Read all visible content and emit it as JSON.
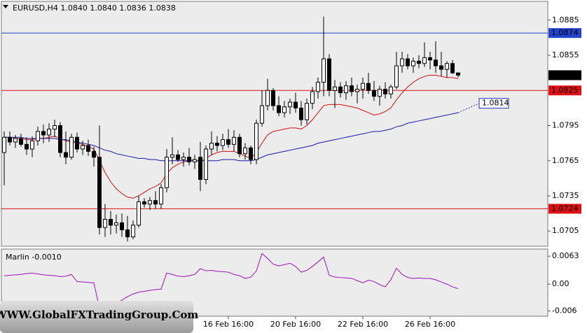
{
  "chart_data": [
    {
      "type": "candlestick",
      "title": "EURUSD,H4  1.0840 1.0840 1.0836 1.0838",
      "categories": [
        null,
        null,
        null,
        null,
        null,
        null,
        null,
        null,
        null,
        null,
        null,
        null,
        null,
        null,
        null,
        null,
        null,
        null,
        null,
        null,
        null,
        null,
        null,
        null,
        null,
        null,
        null,
        null,
        null,
        null,
        null,
        null,
        null,
        null,
        null,
        null,
        null,
        null,
        null,
        null,
        "16 Feb 16:00",
        null,
        null,
        null,
        null,
        null,
        null,
        null,
        null,
        null,
        null,
        null,
        "20 Feb 16:00",
        null,
        null,
        null,
        null,
        null,
        null,
        null,
        null,
        null,
        null,
        null,
        "22 Feb 16:00",
        null,
        null,
        null,
        null,
        null,
        null,
        null,
        null,
        null,
        null,
        null,
        "26 Feb 16:00",
        null,
        null,
        null,
        null,
        null
      ],
      "open": [
        1.0772,
        1.0785,
        1.0781,
        1.0784,
        1.0779,
        1.0775,
        1.0782,
        1.079,
        1.0787,
        1.0792,
        1.0795,
        1.0772,
        1.0768,
        1.0785,
        1.0775,
        1.0778,
        1.0773,
        1.0768,
        1.0708,
        1.0715,
        1.071,
        1.0712,
        1.0706,
        1.07,
        1.071,
        1.073,
        1.0728,
        1.0731,
        1.0728,
        1.0742,
        1.0768,
        1.077,
        1.0766,
        1.0768,
        1.0764,
        1.0768,
        1.0749,
        1.0775,
        1.078,
        1.0778,
        1.0783,
        1.0779,
        1.0785,
        1.0771,
        1.0776,
        1.0766,
        1.0797,
        1.0812,
        1.0825,
        1.0812,
        1.0806,
        1.0811,
        1.0815,
        1.081,
        1.08,
        1.0814,
        1.0824,
        1.0832,
        1.0852,
        1.0825,
        1.0828,
        1.0823,
        1.0829,
        1.0824,
        1.0826,
        1.0831,
        1.0825,
        1.082,
        1.0826,
        1.0822,
        1.0828,
        1.0846,
        1.0852,
        1.0846,
        1.085,
        1.0848,
        1.0853,
        1.0851,
        1.0846,
        1.0843,
        1.0848,
        1.084
      ],
      "high": [
        1.079,
        1.079,
        1.0787,
        1.0788,
        1.0785,
        1.0786,
        1.0794,
        1.0796,
        1.0797,
        1.08,
        1.0798,
        1.079,
        1.0788,
        1.0789,
        1.0782,
        1.0783,
        1.0777,
        1.0795,
        1.0728,
        1.0722,
        1.0719,
        1.072,
        1.0718,
        1.0714,
        1.0735,
        1.0733,
        1.0734,
        1.0739,
        1.0745,
        1.0775,
        1.0785,
        1.0774,
        1.0772,
        1.0776,
        1.077,
        1.0781,
        1.0778,
        1.079,
        1.0786,
        1.0788,
        1.0792,
        1.0791,
        1.0788,
        1.078,
        1.0778,
        1.08,
        1.0825,
        1.0835,
        1.0827,
        1.082,
        1.0816,
        1.0818,
        1.0823,
        1.0816,
        1.0818,
        1.0828,
        1.0836,
        1.0888,
        1.0856,
        1.0834,
        1.0832,
        1.0833,
        1.0836,
        1.083,
        1.0836,
        1.084,
        1.0833,
        1.0829,
        1.0832,
        1.083,
        1.0858,
        1.0858,
        1.0856,
        1.0853,
        1.0855,
        1.0866,
        1.0858,
        1.0867,
        1.0858,
        1.085,
        1.0851,
        1.084
      ],
      "low": [
        1.0744,
        1.0778,
        1.0776,
        1.0777,
        1.077,
        1.0768,
        1.0778,
        1.078,
        1.0781,
        1.0785,
        1.0768,
        1.0762,
        1.0766,
        1.0772,
        1.077,
        1.0769,
        1.076,
        1.0702,
        1.07,
        1.0702,
        1.0703,
        1.07,
        1.0696,
        1.0698,
        1.0708,
        1.0725,
        1.0723,
        1.0724,
        1.0724,
        1.0738,
        1.0762,
        1.0764,
        1.076,
        1.0761,
        1.0758,
        1.0739,
        1.0745,
        1.077,
        1.0773,
        1.0774,
        1.0776,
        1.0773,
        1.0768,
        1.0766,
        1.0762,
        1.0762,
        1.0794,
        1.0808,
        1.0808,
        1.0803,
        1.0802,
        1.0805,
        1.0806,
        1.0795,
        1.0796,
        1.0809,
        1.0818,
        1.082,
        1.082,
        1.081,
        1.0819,
        1.0817,
        1.082,
        1.0814,
        1.0818,
        1.0822,
        1.0816,
        1.0812,
        1.0818,
        1.0818,
        1.0826,
        1.084,
        1.0843,
        1.084,
        1.0844,
        1.0845,
        1.0843,
        1.084,
        1.0837,
        1.0836,
        1.0839,
        1.0836
      ],
      "close": [
        1.0785,
        1.0781,
        1.0784,
        1.0779,
        1.0775,
        1.0782,
        1.079,
        1.0787,
        1.0792,
        1.0795,
        1.0772,
        1.0768,
        1.0785,
        1.0775,
        1.0778,
        1.0773,
        1.0768,
        1.0708,
        1.0715,
        1.071,
        1.0712,
        1.0706,
        1.07,
        1.071,
        1.073,
        1.0728,
        1.0731,
        1.0728,
        1.0742,
        1.0768,
        1.077,
        1.0766,
        1.0768,
        1.0764,
        1.0766,
        1.0749,
        1.0775,
        1.078,
        1.0778,
        1.0783,
        1.0779,
        1.0785,
        1.0771,
        1.0776,
        1.0766,
        1.0797,
        1.0812,
        1.0825,
        1.0812,
        1.0806,
        1.0811,
        1.0815,
        1.081,
        1.08,
        1.0814,
        1.0824,
        1.0832,
        1.0852,
        1.0825,
        1.0828,
        1.0823,
        1.0829,
        1.0824,
        1.0826,
        1.0831,
        1.0825,
        1.082,
        1.0826,
        1.0822,
        1.0828,
        1.0846,
        1.0852,
        1.0846,
        1.085,
        1.0848,
        1.0853,
        1.0851,
        1.0846,
        1.0843,
        1.0848,
        1.084,
        1.0838
      ],
      "up_color": "#ffffff",
      "down_color": "#000000",
      "lines": [
        {
          "color": "#d01010",
          "values": [
            1.0785,
            1.0785,
            1.0784,
            1.0784,
            1.0783,
            1.0783,
            1.0784,
            1.0784,
            1.0785,
            1.0786,
            1.0784,
            1.0782,
            1.0781,
            1.078,
            1.0779,
            1.0777,
            1.0775,
            1.0765,
            1.0755,
            1.0747,
            1.0741,
            1.0737,
            1.0734,
            1.0733,
            1.0735,
            1.0738,
            1.0741,
            1.0743,
            1.0746,
            1.0754,
            1.0759,
            1.0762,
            1.0764,
            1.0765,
            1.0766,
            1.0764,
            1.0767,
            1.077,
            1.0772,
            1.0773,
            1.0773,
            1.0773,
            1.0771,
            1.0769,
            1.0767,
            1.0772,
            1.078,
            1.0787,
            1.079,
            1.0791,
            1.0792,
            1.0793,
            1.0793,
            1.0792,
            1.0795,
            1.08,
            1.0806,
            1.0812,
            1.0813,
            1.0813,
            1.0813,
            1.0812,
            1.0811,
            1.081,
            1.0808,
            1.0806,
            1.0804,
            1.0805,
            1.0807,
            1.081,
            1.0817,
            1.0823,
            1.0828,
            1.0832,
            1.0835,
            1.0837,
            1.0838,
            1.0838,
            1.0837,
            1.0836,
            1.0836,
            1.0835
          ]
        },
        {
          "color": "#1818a8",
          "values": [
            1.0785,
            1.0785,
            1.0785,
            1.0785,
            1.0784,
            1.0784,
            1.0784,
            1.0784,
            1.0784,
            1.0784,
            1.0783,
            1.0783,
            1.0782,
            1.0781,
            1.078,
            1.0779,
            1.0778,
            1.0776,
            1.0774,
            1.0773,
            1.0771,
            1.077,
            1.0769,
            1.0768,
            1.0767,
            1.0767,
            1.0766,
            1.0766,
            1.0765,
            1.0765,
            1.0765,
            1.0765,
            1.0765,
            1.0765,
            1.0765,
            1.0765,
            1.0765,
            1.0765,
            1.0765,
            1.0766,
            1.0766,
            1.0766,
            1.0765,
            1.0765,
            1.0765,
            1.0766,
            1.0768,
            1.077,
            1.0771,
            1.0772,
            1.0773,
            1.0774,
            1.0775,
            1.0776,
            1.0777,
            1.0778,
            1.078,
            1.0781,
            1.0782,
            1.0783,
            1.0784,
            1.0785,
            1.0786,
            1.0787,
            1.0788,
            1.0789,
            1.079,
            1.079,
            1.0791,
            1.0792,
            1.0794,
            1.0795,
            1.0797,
            1.0798,
            1.0799,
            1.08,
            1.0801,
            1.0802,
            1.0803,
            1.0804,
            1.0805,
            1.0806
          ]
        }
      ],
      "hlines": [
        {
          "value": 1.0874,
          "color": "#2244cc"
        },
        {
          "value": 1.0825,
          "color": "#dd1111"
        },
        {
          "value": 1.0724,
          "color": "#dd1111"
        }
      ],
      "projection": {
        "value": 1.0814,
        "color": "#2233bb"
      },
      "ylim": [
        1.0692,
        1.0901
      ],
      "yticks": [
        1.0705,
        1.0735,
        1.0765,
        1.0795,
        1.0855,
        1.0885
      ]
    },
    {
      "type": "line",
      "title": "Marlin -0.0010",
      "series": [
        {
          "color": "#a010c0",
          "values": [
            0.0019,
            0.002,
            0.0021,
            0.0022,
            0.0024,
            0.0025,
            0.0023,
            0.0021,
            0.002,
            0.0019,
            0.0017,
            0.0018,
            0.0022,
            0.0006,
            0.0005,
            0.0004,
            0.0003,
            -0.0054,
            -0.005,
            -0.0046,
            -0.0042,
            -0.0036,
            -0.0028,
            -0.0022,
            -0.0018,
            -0.0016,
            -0.0014,
            -0.0012,
            -0.0011,
            0.0025,
            0.0022,
            0.0018,
            0.0017,
            0.0019,
            0.0022,
            0.0035,
            0.003,
            0.0031,
            0.0029,
            0.0028,
            0.0027,
            0.0022,
            0.0019,
            0.0013,
            0.0016,
            0.003,
            0.0069,
            0.0058,
            0.0045,
            0.0041,
            0.0044,
            0.0047,
            0.004,
            0.0027,
            0.0031,
            0.004,
            0.005,
            0.0061,
            0.002,
            0.0016,
            0.0015,
            0.0014,
            0.0013,
            0.0008,
            0.0003,
            0.0009,
            0.0006,
            -0.0001,
            -0.0006,
            0.001,
            0.0036,
            0.0022,
            0.0015,
            0.0013,
            0.0014,
            0.0013,
            0.0013,
            0.001,
            0.0005,
            0.0,
            -0.0006,
            -0.001
          ]
        }
      ],
      "ylim": [
        -0.0072,
        0.0079
      ],
      "yticks": [
        0.0063,
        {
          "value": 0,
          "label": "0.00"
        },
        -0.006
      ]
    }
  ],
  "watermark": "WWW.GlobalFXTradingGroup.Com"
}
